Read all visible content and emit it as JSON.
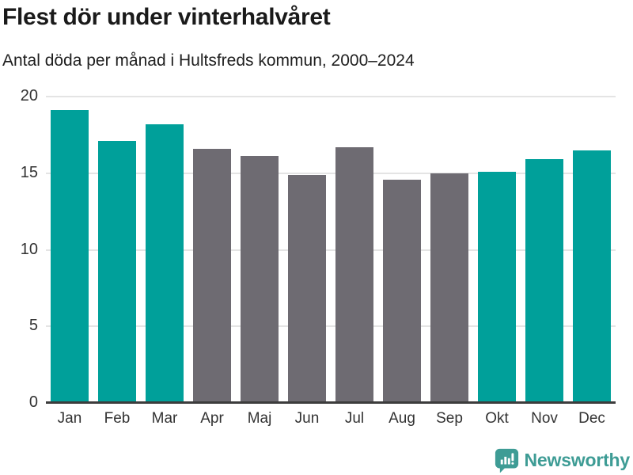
{
  "header": {
    "title": "Flest dör under vinterhalvåret",
    "subtitle": "Antal döda per månad i Hultsfreds kommun, 2000–2024"
  },
  "chart_data": {
    "type": "bar",
    "title": "Flest dör under vinterhalvåret",
    "subtitle": "Antal döda per månad i Hultsfreds kommun, 2000–2024",
    "categories": [
      "Jan",
      "Feb",
      "Mar",
      "Apr",
      "Maj",
      "Jun",
      "Jul",
      "Aug",
      "Sep",
      "Okt",
      "Nov",
      "Dec"
    ],
    "values": [
      19.1,
      17.1,
      18.2,
      16.6,
      16.1,
      14.9,
      16.7,
      14.6,
      15.0,
      15.1,
      15.9,
      16.5
    ],
    "highlight_categories": [
      "Jan",
      "Feb",
      "Mar",
      "Okt",
      "Nov",
      "Dec"
    ],
    "colors": {
      "highlight": "#00a09a",
      "default": "#6e6b72",
      "gridline": "#e4e4e4",
      "axis_line": "#3c3c3c",
      "tick_text": "#333333"
    },
    "xlabel": "",
    "ylabel": "",
    "ylim": [
      0,
      20
    ],
    "yticks": [
      0,
      5,
      10,
      15,
      20
    ],
    "grid": true,
    "legend": false
  },
  "footer": {
    "brand": "Newsworthy",
    "logo_icon": "newsworthy-speech-bubble-chart-icon",
    "brand_color": "#3e9c95"
  }
}
